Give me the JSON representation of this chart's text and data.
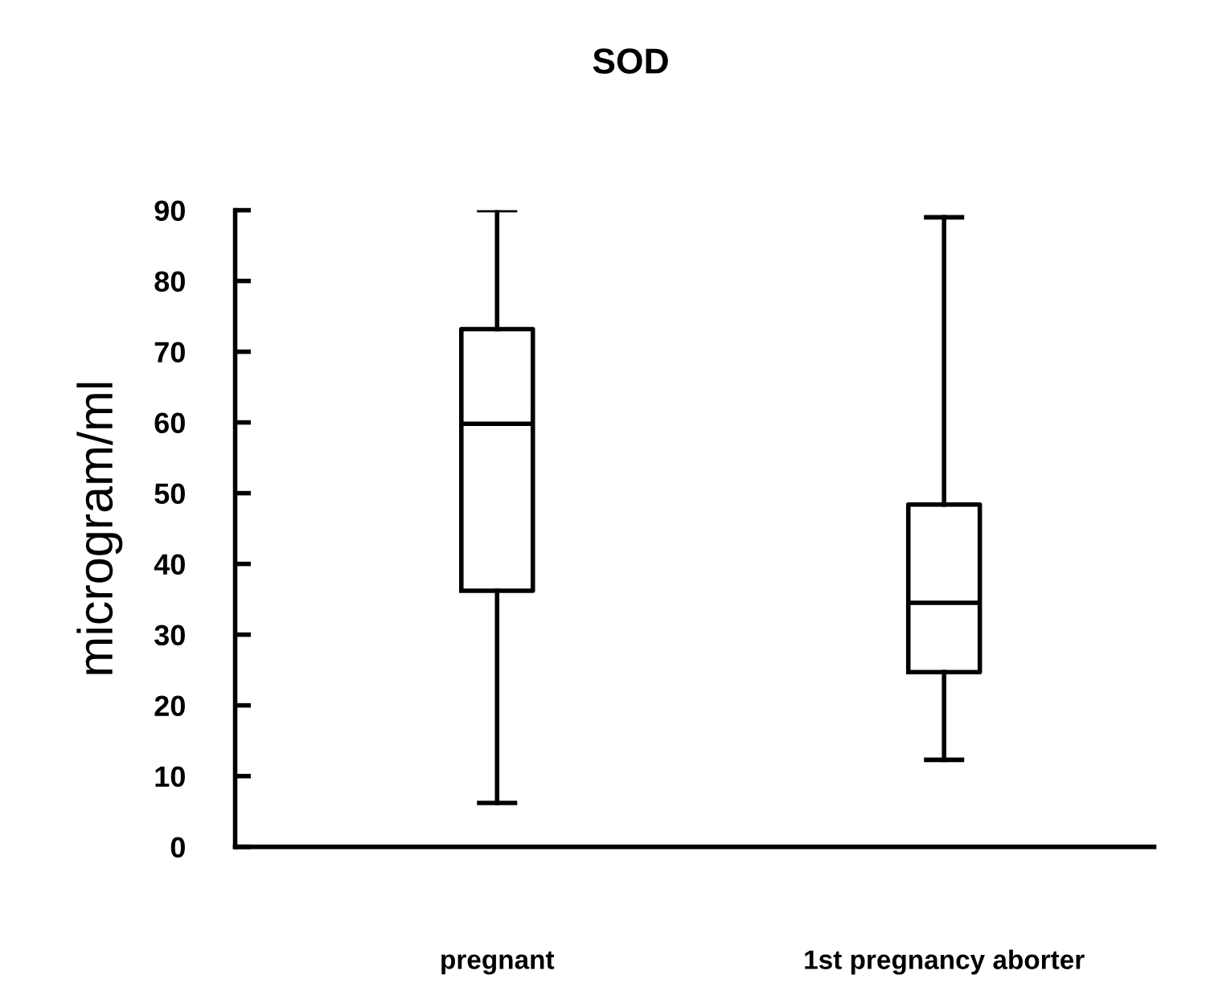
{
  "chart_data": {
    "type": "box",
    "title": "SOD",
    "ylabel": "microgram/ml",
    "categories": [
      "pregnant",
      "1st pregnancy aborter"
    ],
    "boxes": [
      {
        "low": 6.2,
        "q1": 36.2,
        "median": 59.8,
        "q3": 73.2,
        "high": 90
      },
      {
        "low": 12.3,
        "q1": 24.7,
        "median": 34.5,
        "q3": 48.4,
        "high": 89
      }
    ],
    "color": "#000000",
    "ylim": [
      0,
      90
    ],
    "yticks": [
      0,
      10,
      20,
      30,
      40,
      50,
      60,
      70,
      80,
      90
    ],
    "grid": false
  }
}
